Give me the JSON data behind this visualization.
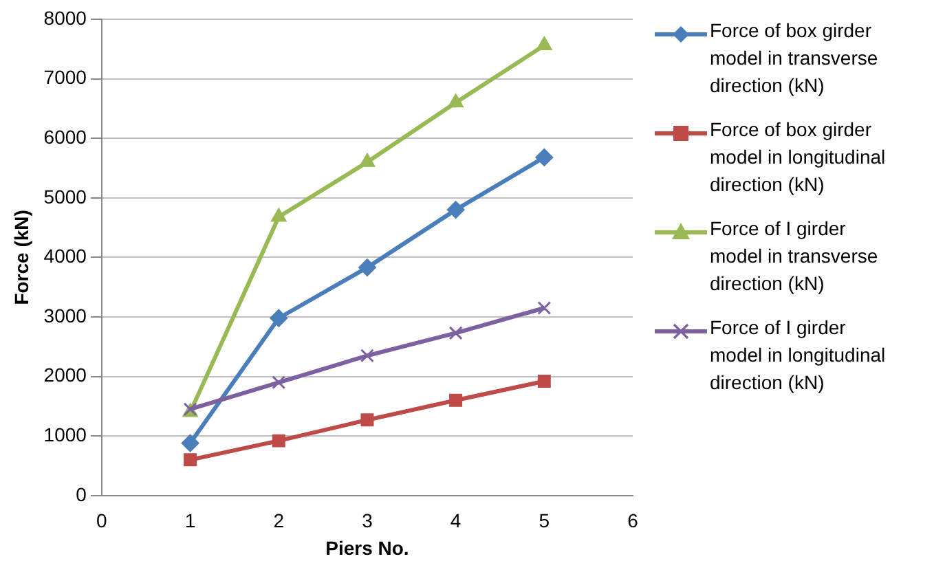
{
  "chart_data": {
    "type": "line",
    "xlabel": "Piers No.",
    "ylabel": "Force (kN)",
    "x": [
      1,
      2,
      3,
      4,
      5
    ],
    "xlim": [
      0,
      6
    ],
    "xticks": [
      0,
      1,
      2,
      3,
      4,
      5,
      6
    ],
    "ylim": [
      0,
      8000
    ],
    "yticks": [
      0,
      1000,
      2000,
      3000,
      4000,
      5000,
      6000,
      7000,
      8000
    ],
    "grid": "y",
    "legend": "right",
    "series": [
      {
        "name": "Force of box girder model in transverse direction (kN)",
        "color": "#4a7ebb",
        "marker": "diamond",
        "values": [
          880,
          2980,
          3830,
          4800,
          5680
        ]
      },
      {
        "name": "Force of box girder model in longitudinal direction (kN)",
        "color": "#be4b48",
        "marker": "square",
        "values": [
          600,
          920,
          1270,
          1600,
          1920
        ]
      },
      {
        "name": "Force of I girder model in transverse direction (kN)",
        "color": "#98b954",
        "marker": "triangle",
        "values": [
          1400,
          4680,
          5600,
          6600,
          7560
        ]
      },
      {
        "name": "Force of I girder model in longitudinal direction (kN)",
        "color": "#7d60a0",
        "marker": "cross",
        "values": [
          1450,
          1900,
          2350,
          2730,
          3150
        ]
      }
    ]
  }
}
